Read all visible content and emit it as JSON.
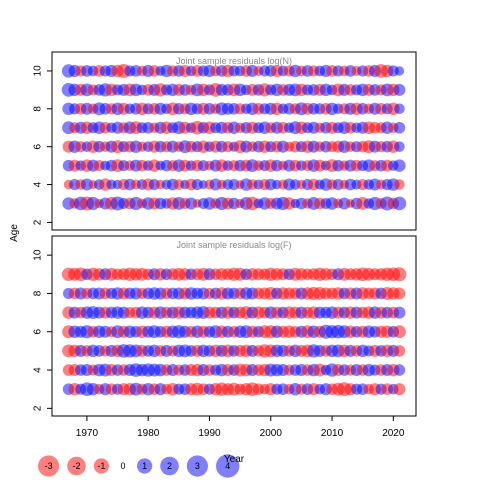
{
  "chart_data": {
    "type": "scatter",
    "xlabel": "Year",
    "ylabel": "Age",
    "x_ticks": [
      "1970",
      "1980",
      "1990",
      "2000",
      "2010",
      "2020"
    ],
    "y_ticks": [
      "2",
      "4",
      "6",
      "8",
      "10"
    ],
    "x_range": [
      1967,
      2021
    ],
    "xlim": [
      1964.3,
      2023.7
    ],
    "colors": {
      "positive": "#0000ff",
      "negative": "#ff0000",
      "opacity": 0.5
    },
    "legend": {
      "placement": "bottom-left",
      "items": [
        {
          "label": "-3",
          "value": -3
        },
        {
          "label": "-2",
          "value": -2
        },
        {
          "label": "-1",
          "value": -1
        },
        {
          "label": "0",
          "value": 0
        },
        {
          "label": "1",
          "value": 1
        },
        {
          "label": "2",
          "value": 2
        },
        {
          "label": "3",
          "value": 3
        },
        {
          "label": "4",
          "value": 4
        }
      ]
    },
    "panels": [
      {
        "title": "Joint sample residuals log(N)",
        "ylim": [
          1.6,
          11.0
        ],
        "ages": [
          3,
          4,
          5,
          6,
          7,
          8,
          9,
          10
        ],
        "residuals": {
          "3": [
            1.2,
            -0.8,
            1.5,
            -1.6,
            1.4,
            -0.6,
            1.1,
            -1.3,
            1.6,
            0.9,
            -1.0,
            1.4,
            -0.7,
            1.2,
            -1.1,
            1.0,
            0.8,
            -1.2,
            1.3,
            -0.9,
            1.1,
            -0.5,
            0.9,
            1.2,
            -0.8,
            1.4,
            -1.1,
            1.0,
            -0.6,
            1.3,
            -1.5,
            0.7,
            1.2,
            -0.9,
            1.1,
            1.4,
            -1.2,
            0.6,
            1.0,
            -0.8,
            1.3,
            -1.0,
            0.9,
            1.2,
            -0.7,
            1.1,
            -0.5,
            1.0,
            -1.3,
            0.8,
            1.4,
            -0.9,
            1.6,
            -1.0,
            1.5
          ],
          "4": [
            -0.6,
            0.9,
            -0.8,
            1.1,
            -0.5,
            0.8,
            -1.2,
            0.7,
            0.6,
            -0.9,
            1.0,
            -0.7,
            0.8,
            -1.1,
            0.9,
            -0.6,
            0.7,
            1.0,
            -0.8,
            0.6,
            -1.0,
            0.9,
            0.5,
            -0.7,
            1.1,
            -0.6,
            0.8,
            0.9,
            -0.5,
            1.2,
            -0.8,
            0.7,
            -0.9,
            1.0,
            0.6,
            -0.7,
            1.1,
            0.8,
            -0.6,
            0.9,
            -1.0,
            0.7,
            1.2,
            -0.8,
            0.9,
            -0.6,
            1.0,
            0.7,
            -0.9,
            0.8,
            1.1,
            -0.7,
            0.9,
            1.2,
            -0.8
          ],
          "5": [
            1.0,
            -1.1,
            0.8,
            -1.2,
            1.1,
            -0.9,
            0.7,
            1.0,
            -1.3,
            0.9,
            -0.8,
            1.1,
            -1.0,
            0.8,
            -1.2,
            0.7,
            1.0,
            -0.9,
            1.2,
            -1.1,
            0.8,
            -1.0,
            0.9,
            -0.7,
            1.1,
            -1.2,
            0.8,
            -0.9,
            1.0,
            -1.1,
            1.3,
            -0.8,
            0.9,
            -1.2,
            1.0,
            -0.7,
            1.1,
            -1.0,
            0.8,
            -0.9,
            1.2,
            -1.1,
            0.7,
            -1.3,
            1.0,
            -0.8,
            1.1,
            -1.0,
            0.9,
            1.2,
            -0.9,
            1.0,
            -1.1,
            0.8,
            1.2
          ],
          "6": [
            -1.1,
            1.2,
            -0.9,
            0.8,
            -1.2,
            1.0,
            -0.8,
            1.1,
            -1.3,
            0.9,
            -1.0,
            1.2,
            -0.7,
            0.8,
            -1.1,
            1.0,
            -0.9,
            1.1,
            -0.8,
            1.3,
            -1.0,
            0.9,
            -1.2,
            0.8,
            -1.1,
            1.0,
            -0.9,
            0.7,
            -1.3,
            1.1,
            -0.8,
            1.0,
            -1.2,
            0.9,
            -1.0,
            1.1,
            -0.7,
            -1.0,
            0.9,
            -1.2,
            1.1,
            -0.8,
            1.0,
            -0.9,
            -1.1,
            1.2,
            -0.8,
            0.9,
            -1.0,
            -1.3,
            1.1,
            -0.9,
            1.0,
            -1.2,
            0.8
          ],
          "7": [
            1.3,
            -0.9,
            1.1,
            -1.2,
            0.9,
            1.2,
            -1.0,
            0.8,
            1.1,
            -0.9,
            1.2,
            -1.3,
            0.9,
            1.0,
            -0.8,
            1.1,
            -1.2,
            0.9,
            1.3,
            -1.1,
            0.8,
            -1.5,
            1.0,
            -1.2,
            0.9,
            1.1,
            -1.0,
            1.2,
            -0.8,
            1.0,
            -1.1,
            0.9,
            1.2,
            -0.9,
            1.1,
            -1.0,
            0.8,
            1.3,
            -1.2,
            0.9,
            1.1,
            -0.8,
            1.0,
            -1.1,
            0.9,
            1.2,
            -1.0,
            0.8,
            1.1,
            -1.2,
            -1.0,
            -0.9,
            1.2,
            -0.8,
            1.0
          ],
          "8": [
            1.2,
            0.9,
            -1.0,
            1.1,
            -0.8,
            1.3,
            1.0,
            -0.9,
            1.2,
            -1.1,
            0.8,
            1.0,
            -1.2,
            0.9,
            -1.0,
            1.1,
            0.8,
            -1.3,
            1.0,
            -0.9,
            1.2,
            0.9,
            -1.1,
            1.0,
            -0.8,
            1.3,
            1.1,
            1.0,
            -0.9,
            0.8,
            1.2,
            -1.0,
            0.9,
            1.1,
            -1.2,
            0.8,
            1.0,
            -0.9,
            1.3,
            -1.1,
            1.0,
            0.9,
            -1.0,
            1.2,
            0.8,
            -0.9,
            1.1,
            -1.2,
            1.0,
            -0.8,
            1.1,
            -1.0,
            0.9,
            -1.2,
            0.8
          ],
          "9": [
            1.5,
            1.2,
            -1.1,
            1.3,
            -0.9,
            1.0,
            1.4,
            -1.2,
            0.9,
            1.1,
            -1.3,
            1.2,
            0.8,
            -1.0,
            1.1,
            -1.4,
            0.9,
            1.2,
            -1.1,
            1.0,
            -0.8,
            1.3,
            -1.2,
            0.9,
            -1.5,
            1.1,
            1.0,
            -1.3,
            1.2,
            0.8,
            -1.1,
            1.0,
            -1.4,
            0.9,
            1.2,
            -1.0,
            1.1,
            1.3,
            -1.2,
            0.9,
            1.0,
            -1.1,
            1.2,
            0.8,
            -1.3,
            1.1,
            -1.0,
            0.9,
            1.2,
            -1.1,
            1.0,
            -0.9,
            1.3,
            -1.2,
            1.1
          ],
          "10": [
            1.4,
            1.1,
            -0.9,
            1.0,
            0.8,
            -1.0,
            0.9,
            1.1,
            -1.2,
            -1.6,
            0.9,
            1.0,
            -0.8,
            1.1,
            -1.0,
            0.7,
            1.2,
            -0.9,
            1.0,
            -1.1,
            0.8,
            -1.0,
            0.9,
            1.1,
            -0.8,
            1.0,
            -1.2,
            0.9,
            0.8,
            -1.0,
            1.1,
            -0.7,
            0.9,
            1.0,
            -1.1,
            0.8,
            -0.9,
            1.2,
            -0.8,
            1.0,
            -0.9,
            0.8,
            1.1,
            -1.0,
            0.9,
            -0.8,
            1.0,
            -0.7,
            0.9,
            -1.0,
            1.1,
            -1.5,
            -1.2,
            0.9,
            0.6
          ]
        }
      },
      {
        "title": "Joint sample residuals log(F)",
        "ylim": [
          1.6,
          11.0
        ],
        "ages": [
          3,
          4,
          5,
          6,
          7,
          8,
          9
        ],
        "residuals": {
          "3": [
            1.0,
            -1.2,
            0.9,
            1.5,
            1.2,
            -0.8,
            1.1,
            -1.0,
            0.9,
            -1.1,
            -1.2,
            1.3,
            -0.9,
            1.2,
            -1.0,
            1.1,
            -0.8,
            -1.2,
            0.9,
            1.0,
            -1.1,
            -1.3,
            -1.0,
            0.9,
            -1.2,
            -1.4,
            -1.1,
            -1.3,
            -0.9,
            -1.2,
            -1.5,
            -1.0,
            -0.8,
            -1.1,
            0.9,
            1.0,
            -0.8,
            1.2,
            -0.9,
            1.0,
            -1.1,
            0.8,
            1.1,
            -1.0,
            -1.3,
            -1.6,
            -1.1,
            0.9,
            1.0,
            -0.8,
            -1.1,
            0.9,
            -1.0,
            0.8,
            -1.1
          ],
          "4": [
            -1.0,
            -1.1,
            1.0,
            1.1,
            -0.9,
            1.2,
            1.3,
            -1.1,
            1.0,
            -1.0,
            1.1,
            1.5,
            1.2,
            1.4,
            1.3,
            1.2,
            -1.0,
            1.1,
            -0.9,
            1.0,
            -1.1,
            -1.2,
            1.1,
            -1.0,
            0.9,
            1.2,
            -1.1,
            1.0,
            -1.3,
            -1.2,
            1.1,
            -1.0,
            -1.2,
            1.3,
            1.2,
            1.1,
            -0.9,
            1.0,
            1.1,
            -1.0,
            1.2,
            -1.3,
            0.8,
            1.4,
            -1.1,
            1.0,
            -0.9,
            1.1,
            -1.0,
            1.2,
            0.9,
            -1.0,
            1.1,
            -1.2,
            1.0
          ],
          "5": [
            -1.3,
            -1.2,
            1.1,
            -1.0,
            1.2,
            1.0,
            -0.9,
            1.1,
            -1.2,
            1.5,
            1.4,
            1.3,
            -1.1,
            1.0,
            1.2,
            -1.0,
            1.1,
            -0.9,
            1.2,
            1.3,
            1.0,
            -1.1,
            1.2,
            1.0,
            -1.2,
            1.1,
            -1.3,
            1.0,
            -1.1,
            -1.2,
            1.1,
            -1.0,
            -1.4,
            -1.3,
            1.2,
            1.1,
            -1.0,
            1.2,
            -1.1,
            -1.3,
            1.4,
            1.1,
            -1.0,
            1.2,
            1.3,
            -1.2,
            1.1,
            -1.0,
            1.2,
            0.9,
            -1.1,
            1.0,
            -1.2,
            1.1,
            -1.0
          ],
          "6": [
            -1.3,
            1.2,
            1.1,
            1.4,
            -1.0,
            1.2,
            1.1,
            -0.9,
            1.3,
            -1.1,
            1.2,
            1.0,
            -1.2,
            1.1,
            1.3,
            1.0,
            -1.1,
            1.2,
            1.4,
            1.1,
            -1.0,
            1.2,
            -1.1,
            1.0,
            1.3,
            -1.2,
            1.1,
            -1.0,
            1.2,
            1.3,
            -1.1,
            1.0,
            -1.3,
            -1.4,
            1.2,
            -1.1,
            -1.2,
            -1.0,
            1.1,
            -1.3,
            1.2,
            -1.1,
            1.6,
            1.4,
            1.5,
            1.3,
            -1.2,
            1.0,
            -1.1,
            1.2,
            1.0,
            -1.1,
            -1.2,
            1.0,
            -1.3
          ],
          "7": [
            -1.2,
            1.1,
            -1.0,
            1.2,
            1.3,
            1.1,
            -1.1,
            1.0,
            1.2,
            1.1,
            -0.9,
            -1.0,
            1.2,
            1.0,
            -1.1,
            1.2,
            -1.0,
            1.1,
            -1.2,
            1.1,
            1.0,
            1.2,
            1.3,
            -1.1,
            -1.0,
            1.1,
            -1.2,
            1.0,
            -1.1,
            -1.3,
            1.1,
            -1.2,
            -1.0,
            1.2,
            -1.1,
            1.0,
            -1.2,
            -1.1,
            1.1,
            -1.0,
            -1.2,
            1.1,
            1.0,
            1.2,
            -1.1,
            1.0,
            -1.2,
            1.1,
            -1.0,
            -1.2,
            1.2,
            -1.1,
            1.0,
            -1.0,
            1.1
          ],
          "8": [
            0.9,
            -1.0,
            1.1,
            -0.9,
            1.0,
            1.1,
            -1.0,
            0.9,
            1.2,
            -1.1,
            1.0,
            1.1,
            -0.9,
            1.0,
            1.2,
            1.1,
            -1.0,
            1.0,
            1.1,
            -1.1,
            1.2,
            1.0,
            1.1,
            -0.9,
            1.0,
            -1.2,
            1.1,
            1.0,
            -1.0,
            1.2,
            1.1,
            -1.0,
            -1.1,
            -1.3,
            1.0,
            -1.2,
            -1.1,
            -1.0,
            1.1,
            -1.2,
            -1.4,
            -1.3,
            -1.1,
            -1.0,
            -1.2,
            1.0,
            -1.1,
            1.1,
            -1.2,
            -1.0,
            -1.1,
            1.0,
            -1.3,
            -1.2,
            -1.1
          ],
          "9": [
            -1.4,
            -1.3,
            -1.5,
            1.0,
            -1.4,
            -1.2,
            1.1,
            -1.3,
            -1.0,
            -1.1,
            -1.4,
            -1.2,
            -1.3,
            -1.0,
            1.1,
            -1.2,
            1.0,
            -1.1,
            -1.3,
            -1.2,
            1.0,
            -1.1,
            -1.3,
            1.1,
            -1.0,
            -1.2,
            -1.1,
            -1.4,
            -1.3,
            1.0,
            -1.2,
            -1.1,
            -1.0,
            -1.4,
            -1.2,
            -1.1,
            1.0,
            -1.3,
            -1.2,
            -1.0,
            -1.1,
            -1.4,
            -1.2,
            -1.0,
            1.1,
            -1.3,
            -1.1,
            -1.2,
            -1.5,
            -1.3,
            -1.1,
            -1.2,
            -1.4,
            -1.5,
            -1.6
          ]
        }
      }
    ]
  }
}
